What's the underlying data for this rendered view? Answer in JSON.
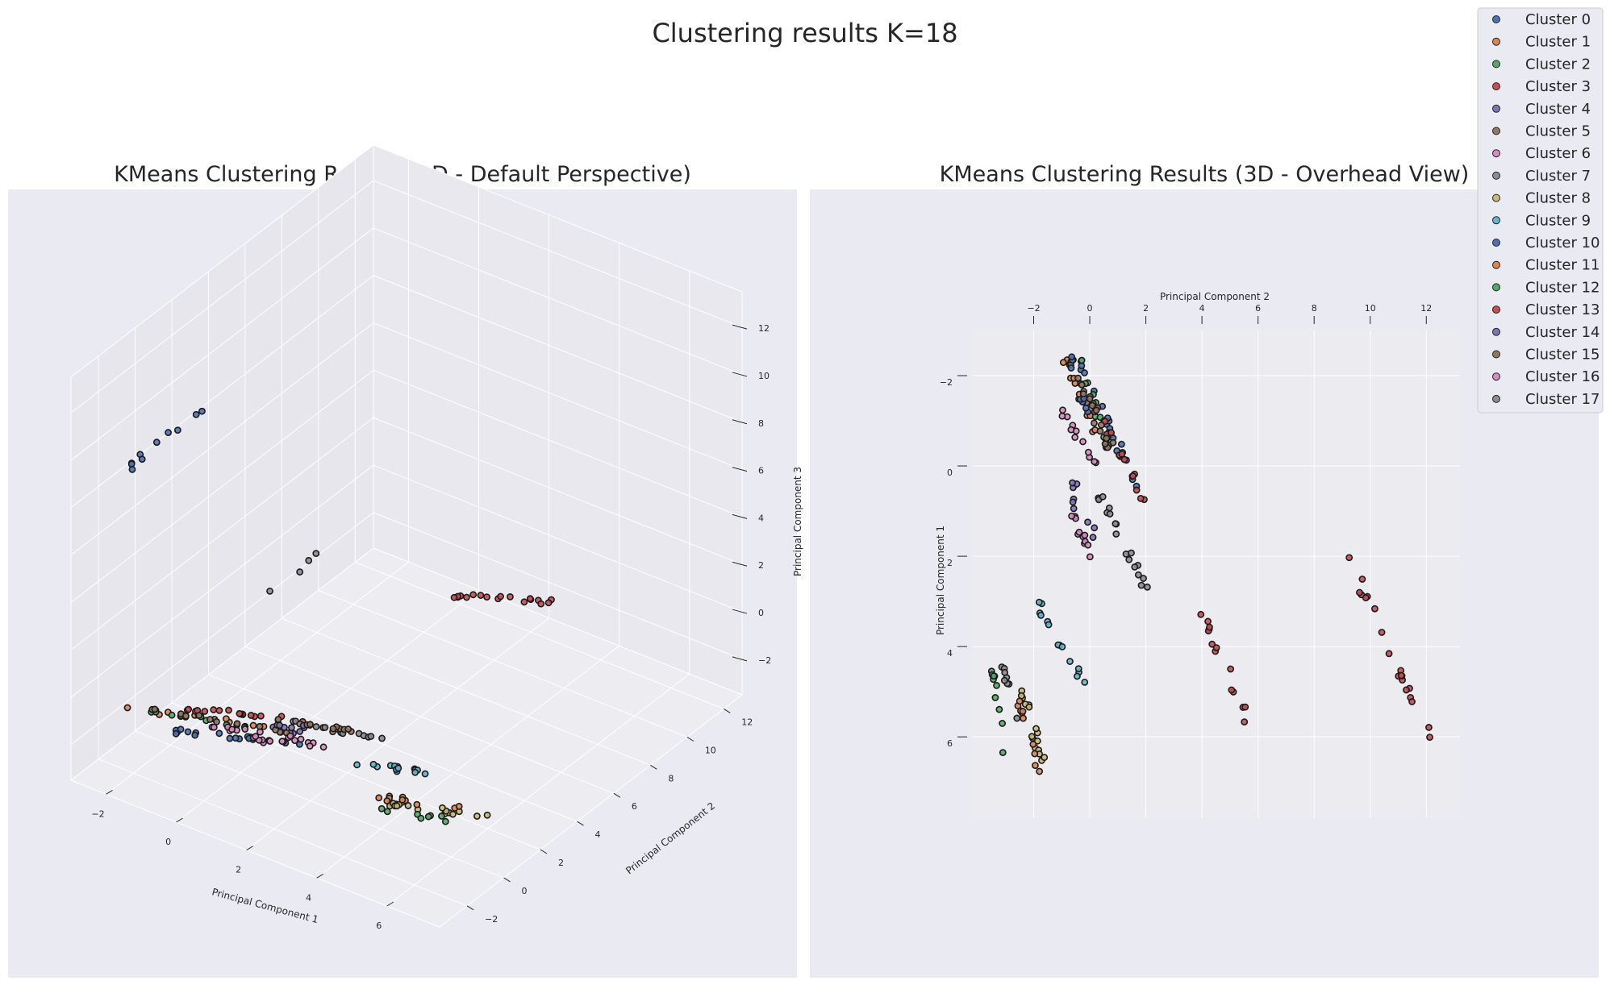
{
  "suptitle": "Clustering results K=18",
  "legend": {
    "placement": "top-right",
    "entries": [
      "Cluster 0",
      "Cluster 1",
      "Cluster 2",
      "Cluster 3",
      "Cluster 4",
      "Cluster 5",
      "Cluster 6",
      "Cluster 7",
      "Cluster 8",
      "Cluster 9",
      "Cluster 10",
      "Cluster 11",
      "Cluster 12",
      "Cluster 13",
      "Cluster 14",
      "Cluster 15",
      "Cluster 16",
      "Cluster 17"
    ],
    "colors": [
      "#4c72b0",
      "#dd8452",
      "#55a868",
      "#c44e52",
      "#8172b3",
      "#937860",
      "#da8bc3",
      "#8c8c8c",
      "#ccb974",
      "#64b5cd",
      "#4c72b0",
      "#dd8452",
      "#55a868",
      "#c44e52",
      "#8172b3",
      "#937860",
      "#da8bc3",
      "#8c8c8c"
    ]
  },
  "chart_data": [
    {
      "type": "scatter",
      "projection": "3d",
      "view": "default",
      "title": "KMeans Clustering Results (3D - Default Perspective)",
      "xlabel": "Principal Component 1",
      "ylabel": "Principal Component 2",
      "zlabel": "Principal Component 3",
      "xticks": [
        -2,
        0,
        2,
        4,
        6
      ],
      "yticks": [
        -2,
        0,
        2,
        4,
        6,
        8,
        10,
        12
      ],
      "zticks": [
        -2,
        0,
        2,
        4,
        6,
        8,
        10,
        12
      ],
      "xlim": [
        -3,
        7.5
      ],
      "ylim": [
        -3.5,
        13
      ],
      "zlim": [
        -3.5,
        13.5
      ],
      "grid": true,
      "groups": [
        {
          "name": "Cluster 0",
          "color": "#4c72b0",
          "center": [
            0.3,
            -1.0,
            -1.2
          ],
          "axis": [
            1.5,
            1.0,
            0
          ],
          "n": 18
        },
        {
          "name": "Cluster 1",
          "color": "#dd8452",
          "center": [
            -0.9,
            -0.8,
            -1.2
          ],
          "axis": [
            1.5,
            0.8,
            0
          ],
          "n": 12
        },
        {
          "name": "Cluster 2",
          "color": "#55a868",
          "center": [
            -0.6,
            -0.7,
            -1.2
          ],
          "axis": [
            1.2,
            0.7,
            0
          ],
          "n": 10
        },
        {
          "name": "Cluster 3",
          "color": "#c44e52",
          "center": [
            0.1,
            0.3,
            -1.2
          ],
          "axis": [
            1.4,
            0.9,
            0
          ],
          "n": 18
        },
        {
          "name": "Cluster 4",
          "color": "#8172b3",
          "center": [
            1.0,
            0.1,
            -1.2
          ],
          "axis": [
            0.4,
            0.3,
            0
          ],
          "n": 5
        },
        {
          "name": "Cluster 5",
          "color": "#937860",
          "center": [
            -0.4,
            -0.5,
            -1.2
          ],
          "axis": [
            1.6,
            0.8,
            0
          ],
          "n": 14
        },
        {
          "name": "Cluster 6",
          "color": "#da8bc3",
          "center": [
            0.8,
            -0.3,
            -1.2
          ],
          "axis": [
            1.2,
            0.6,
            0
          ],
          "n": 14
        },
        {
          "name": "Cluster 7",
          "color": "#8c8c8c",
          "center": [
            2.0,
            1.2,
            -1.2
          ],
          "axis": [
            1.2,
            0.6,
            0
          ],
          "n": 16
        },
        {
          "name": "Cluster 8",
          "color": "#ccb974",
          "center": [
            5.9,
            -0.6,
            -1.2
          ],
          "axis": [
            1.0,
            0.6,
            0
          ],
          "n": 18
        },
        {
          "name": "Cluster 9",
          "color": "#64b5cd",
          "center": [
            4.2,
            0.6,
            -1.2
          ],
          "axis": [
            1.0,
            0.6,
            0
          ],
          "n": 14
        },
        {
          "name": "Cluster 10",
          "color": "#4c72b0",
          "center": [
            -1.8,
            -0.8,
            10.0
          ],
          "axis": [
            0.2,
            1.6,
            0.4
          ],
          "n": 10
        },
        {
          "name": "Cluster 11",
          "color": "#dd8452",
          "center": [
            5.5,
            -0.5,
            -1.2
          ],
          "axis": [
            0.9,
            0.6,
            0
          ],
          "n": 10
        },
        {
          "name": "Cluster 12",
          "color": "#55a868",
          "center": [
            5.5,
            -1.3,
            -1.2
          ],
          "axis": [
            0.8,
            0.4,
            0
          ],
          "n": 8
        },
        {
          "name": "Cluster 13",
          "color": "#c44e52",
          "center": [
            2.0,
            10.5,
            -1.2
          ],
          "axis": [
            1.2,
            1.0,
            0
          ],
          "n": 18
        },
        {
          "name": "Cluster 14",
          "color": "#8172b3",
          "center": [
            1.0,
            0.5,
            -1.2
          ],
          "axis": [
            0.5,
            0.4,
            0
          ],
          "n": 6
        },
        {
          "name": "Cluster 15",
          "color": "#937860",
          "center": [
            1.5,
            1.0,
            -1.2
          ],
          "axis": [
            1.0,
            0.6,
            0
          ],
          "n": 10
        },
        {
          "name": "Cluster 16",
          "color": "#da8bc3",
          "center": [
            1.6,
            -0.2,
            -1.2
          ],
          "axis": [
            0.8,
            0.5,
            0
          ],
          "n": 10
        },
        {
          "name": "Cluster 17",
          "color": "#8c8c8c",
          "center": [
            0.5,
            2.0,
            4.0
          ],
          "axis": [
            0.2,
            1.0,
            0.3
          ],
          "n": 4
        }
      ]
    },
    {
      "type": "scatter",
      "projection": "3d",
      "view": "overhead",
      "title": "KMeans Clustering Results (3D - Overhead View)",
      "xlabel": "Principal Component 2",
      "ylabel": "Principal Component 1",
      "xticks": [
        -2,
        0,
        2,
        4,
        6,
        8,
        10,
        12
      ],
      "yticks": [
        -2,
        0,
        2,
        4,
        6
      ],
      "xlim": [
        -4.2,
        13.2
      ],
      "ylim": [
        -3,
        7.8
      ],
      "grid": true,
      "groups": [
        {
          "name": "Cluster 0",
          "color": "#4c72b0",
          "center": [
            0.6,
            -1.0
          ],
          "axis": [
            1.2,
            1.6
          ],
          "n": 20
        },
        {
          "name": "Cluster 1",
          "color": "#dd8452",
          "center": [
            -0.3,
            -1.5
          ],
          "axis": [
            0.6,
            0.8
          ],
          "n": 12
        },
        {
          "name": "Cluster 2",
          "color": "#55a868",
          "center": [
            0.1,
            -1.5
          ],
          "axis": [
            0.6,
            1.0
          ],
          "n": 10
        },
        {
          "name": "Cluster 3",
          "color": "#c44e52",
          "center": [
            1.2,
            -0.1
          ],
          "axis": [
            1.0,
            1.2
          ],
          "n": 16
        },
        {
          "name": "Cluster 4",
          "color": "#8172b3",
          "center": [
            -0.7,
            0.8
          ],
          "axis": [
            0.1,
            0.3
          ],
          "n": 4
        },
        {
          "name": "Cluster 5",
          "color": "#937860",
          "center": [
            0.0,
            -1.4
          ],
          "axis": [
            0.7,
            1.0
          ],
          "n": 14
        },
        {
          "name": "Cluster 6",
          "color": "#da8bc3",
          "center": [
            -0.4,
            -0.6
          ],
          "axis": [
            0.6,
            0.7
          ],
          "n": 12
        },
        {
          "name": "Cluster 7",
          "color": "#8c8c8c",
          "center": [
            1.1,
            1.6
          ],
          "axis": [
            1.0,
            1.2
          ],
          "n": 18
        },
        {
          "name": "Cluster 8",
          "color": "#ccb974",
          "center": [
            -2.0,
            5.9
          ],
          "axis": [
            0.4,
            0.9
          ],
          "n": 16
        },
        {
          "name": "Cluster 9",
          "color": "#64b5cd",
          "center": [
            -1.0,
            4.0
          ],
          "axis": [
            0.9,
            1.0
          ],
          "n": 14
        },
        {
          "name": "Cluster 10",
          "color": "#4c72b0",
          "center": [
            -0.4,
            -1.8
          ],
          "axis": [
            0.3,
            0.6
          ],
          "n": 8
        },
        {
          "name": "Cluster 11",
          "color": "#dd8452",
          "center": [
            -2.2,
            6.0
          ],
          "axis": [
            0.4,
            0.8
          ],
          "n": 10
        },
        {
          "name": "Cluster 12",
          "color": "#55a868",
          "center": [
            -3.2,
            5.4
          ],
          "axis": [
            0.2,
            1.0
          ],
          "n": 10
        },
        {
          "name": "Cluster 13",
          "color": "#c44e52",
          "center": [
            10.5,
            3.8
          ],
          "axis": [
            1.6,
            2.2
          ],
          "n": 20
        },
        {
          "name": "Cluster 14",
          "color": "#8172b3",
          "center": [
            -0.2,
            1.0
          ],
          "axis": [
            0.4,
            0.6
          ],
          "n": 6
        },
        {
          "name": "Cluster 15",
          "color": "#937860",
          "center": [
            0.2,
            -1.2
          ],
          "axis": [
            0.8,
            1.0
          ],
          "n": 10
        },
        {
          "name": "Cluster 16",
          "color": "#da8bc3",
          "center": [
            -0.2,
            1.6
          ],
          "axis": [
            0.5,
            0.6
          ],
          "n": 10
        },
        {
          "name": "Cluster 17",
          "color": "#8c8c8c",
          "center": [
            -3.0,
            4.7
          ],
          "axis": [
            0.3,
            0.9
          ],
          "n": 8
        },
        {
          "name": "Cluster 3",
          "color": "#c44e52",
          "center": [
            5.0,
            4.7
          ],
          "axis": [
            1.0,
            1.5
          ],
          "n": 14
        }
      ]
    }
  ]
}
